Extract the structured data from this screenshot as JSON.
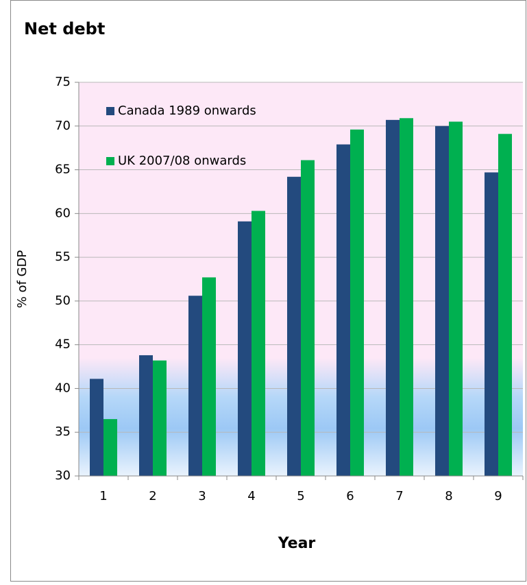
{
  "chart_data": {
    "type": "bar",
    "title": "Net debt",
    "x_label": "Year",
    "y_label": "% of GDP",
    "categories": [
      "1",
      "2",
      "3",
      "4",
      "5",
      "6",
      "7",
      "8",
      "9"
    ],
    "series": [
      {
        "name": "Canada 1989 onwards",
        "color": "#234a7e",
        "values": [
          41.1,
          43.8,
          50.6,
          59.1,
          64.2,
          67.9,
          70.7,
          70.0,
          64.7
        ]
      },
      {
        "name": "UK 2007/08 onwards",
        "color": "#00b050",
        "values": [
          36.5,
          43.2,
          52.7,
          60.3,
          66.1,
          69.6,
          70.9,
          70.5,
          69.1
        ]
      }
    ],
    "ylim": [
      30,
      75
    ],
    "yticks": [
      30,
      35,
      40,
      45,
      50,
      55,
      60,
      65,
      70,
      75
    ],
    "grid": true
  }
}
